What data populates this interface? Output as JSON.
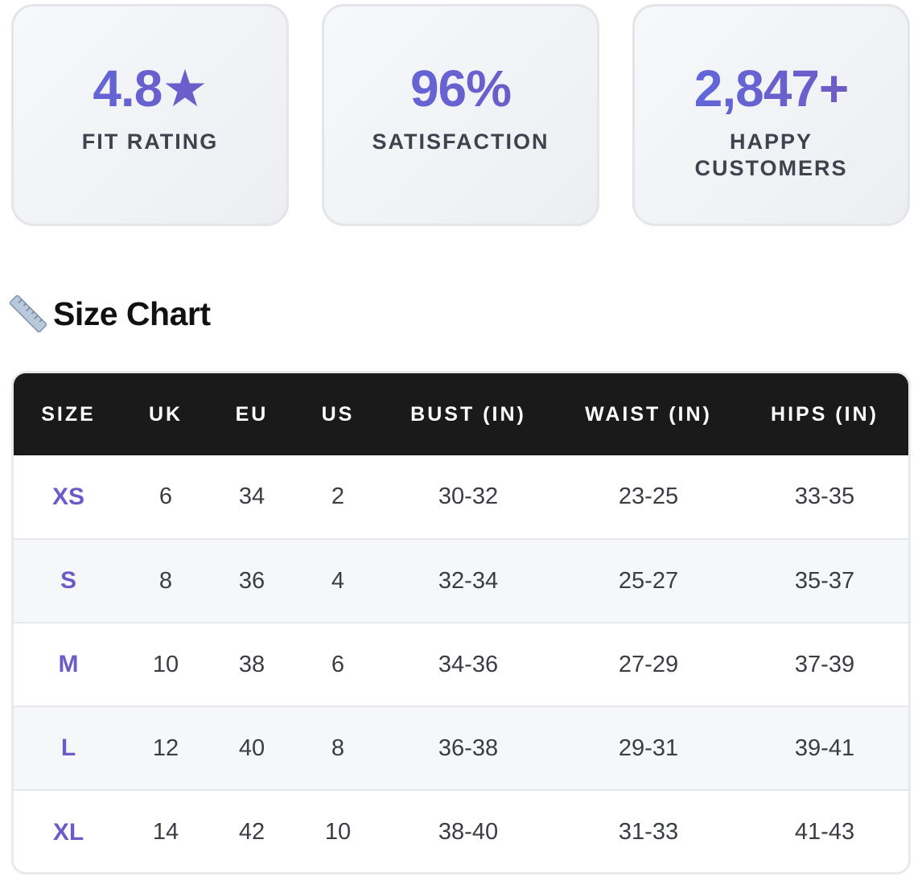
{
  "stats": [
    {
      "value": "4.8★",
      "label": "Fit Rating"
    },
    {
      "value": "96%",
      "label": "Satisfaction"
    },
    {
      "value": "2,847+",
      "label": "Happy Customers"
    }
  ],
  "section": {
    "icon": "ruler-icon",
    "title": "Size Chart"
  },
  "size_table": {
    "headers": [
      "Size",
      "UK",
      "EU",
      "US",
      "Bust (in)",
      "Waist (in)",
      "Hips (in)"
    ],
    "rows": [
      [
        "XS",
        "6",
        "34",
        "2",
        "30-32",
        "23-25",
        "33-35"
      ],
      [
        "S",
        "8",
        "36",
        "4",
        "32-34",
        "25-27",
        "35-37"
      ],
      [
        "M",
        "10",
        "38",
        "6",
        "34-36",
        "27-29",
        "37-39"
      ],
      [
        "L",
        "12",
        "40",
        "8",
        "36-38",
        "29-31",
        "39-41"
      ],
      [
        "XL",
        "14",
        "42",
        "10",
        "38-40",
        "31-33",
        "41-43"
      ]
    ]
  },
  "colors": {
    "accent_start": "#5b6be0",
    "accent_end": "#7656be",
    "size_text": "#6b5bc8",
    "header_bg": "#1a1a1a"
  }
}
